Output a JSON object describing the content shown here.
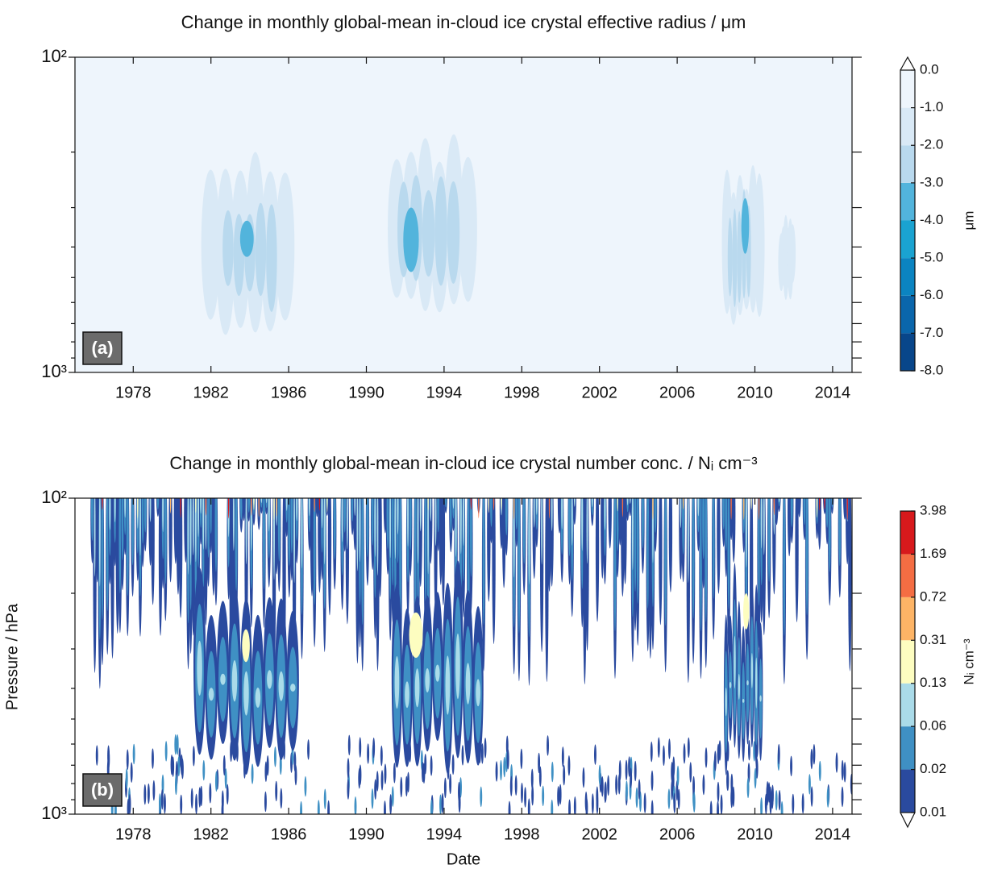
{
  "chart_data": [
    {
      "type": "contour",
      "panel_label": "(a)",
      "title": "Change in monthly global-mean in-cloud ice crystal effective radius / μm",
      "xlim": [
        1975,
        2015
      ],
      "xticks": [
        1978,
        1982,
        1986,
        1990,
        1994,
        1998,
        2002,
        2006,
        2010,
        2014
      ],
      "ylim": [
        1000,
        100
      ],
      "log_y": true,
      "yticks": [
        {
          "value": 100,
          "label": "10²"
        },
        {
          "value": 1000,
          "label": "10³"
        }
      ],
      "yminor": [
        200,
        300,
        400,
        500,
        600,
        700,
        800,
        900
      ],
      "colorbar": {
        "label": "μm",
        "extend": "max",
        "levels": [
          {
            "value": -8,
            "label": "-8.0"
          },
          {
            "value": -7,
            "label": "-7.0"
          },
          {
            "value": -6,
            "label": "-6.0"
          },
          {
            "value": -5,
            "label": "-5.0"
          },
          {
            "value": -4,
            "label": "-4.0"
          },
          {
            "value": -3,
            "label": "-3.0"
          },
          {
            "value": -2,
            "label": "-2.0"
          },
          {
            "value": -1,
            "label": "-1.0"
          },
          {
            "value": 0,
            "label": "0.0"
          }
        ],
        "colors": [
          "#08468a",
          "#0a66ab",
          "#0b84c1",
          "#1aa3d1",
          "#52b4dc",
          "#b9d9ee",
          "#d9e9f6",
          "#eef5fc"
        ],
        "extend_color": "#ffffff"
      }
    },
    {
      "type": "contour",
      "panel_label": "(b)",
      "title": "Change in monthly global-mean in-cloud ice crystal number conc. / Nᵢ cm⁻³",
      "xlabel": "Date",
      "ylabel": "Pressure / hPa",
      "xlim": [
        1975,
        2015
      ],
      "xticks": [
        1978,
        1982,
        1986,
        1990,
        1994,
        1998,
        2002,
        2006,
        2010,
        2014
      ],
      "ylim": [
        1000,
        100
      ],
      "log_y": true,
      "yticks": [
        {
          "value": 100,
          "label": "10²"
        },
        {
          "value": 1000,
          "label": "10³"
        }
      ],
      "yminor": [
        200,
        300,
        400,
        500,
        600,
        700,
        800,
        900
      ],
      "colorbar": {
        "label": "Nᵢ cm⁻³",
        "extend": "min",
        "levels": [
          0.01,
          0.02,
          0.06,
          0.13,
          0.31,
          0.72,
          1.69,
          3.98
        ],
        "colors": [
          "#2a4a9f",
          "#3f90c4",
          "#aadbe9",
          "#fdfdc0",
          "#fdb466",
          "#f46d43",
          "#d7191c"
        ],
        "extend_color": "#ffffff"
      }
    }
  ]
}
